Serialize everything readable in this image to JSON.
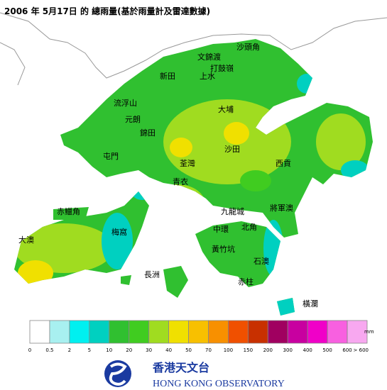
{
  "title": "2006 年 5月17日 的 總雨量(基於雨量計及雷達數據)",
  "places": [
    "沙頭角",
    "文錦渡",
    "打鼓嶺",
    "新田",
    "上水",
    "流浮山",
    "元朗",
    "大埔",
    "錦田",
    "沙田",
    "屯門",
    "荃灣",
    "西貢",
    "青衣",
    "赤鱲角",
    "九龍城",
    "將軍澳",
    "梅窩",
    "中環",
    "北角",
    "大澳",
    "黃竹坑",
    "石澳",
    "長洲",
    "赤柱",
    "橫瀾"
  ],
  "legend": {
    "colors": [
      "#ffffff",
      "#a8f0f0",
      "#00f0f0",
      "#00d0c0",
      "#30c030",
      "#40cc20",
      "#a0dc20",
      "#f0e000",
      "#f8c000",
      "#f89000",
      "#f05000",
      "#c83000",
      "#a00060",
      "#c800a0",
      "#f000c8",
      "#f860e0",
      "#f8a8f0",
      "#fce0fc"
    ],
    "labels": [
      "0",
      "0.5",
      "2",
      "5",
      "10",
      "20",
      "30",
      "40",
      "50",
      "70",
      "100",
      "150",
      "200",
      "300",
      "400",
      "500",
      "600",
      "> 600"
    ],
    "unit": "mm"
  },
  "logo": {
    "chinese": "香港天文台",
    "english": "HONG KONG OBSERVATORY"
  }
}
